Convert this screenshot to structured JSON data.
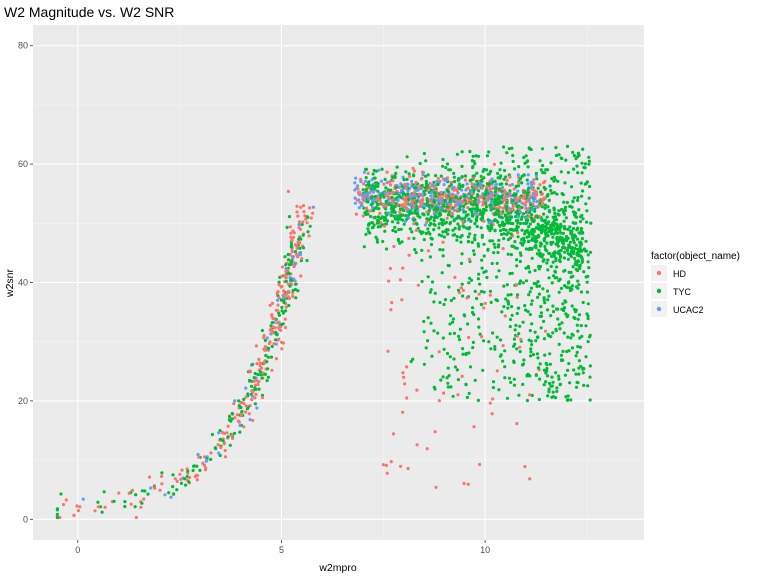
{
  "chart_data": {
    "type": "scatter",
    "title": "W2 Magnitude vs. W2 SNR",
    "xlabel": "w2mpro",
    "ylabel": "w2snr",
    "xlim": [
      -1.1,
      13.9
    ],
    "ylim": [
      -3.5,
      83.5
    ],
    "x_ticks": [
      0,
      5,
      10
    ],
    "y_ticks": [
      0,
      20,
      40,
      60,
      80
    ],
    "grid": true,
    "legend": {
      "title": "factor(object_name)",
      "placement": "right",
      "entries": [
        "HD",
        "TYC",
        "UCAC2"
      ]
    },
    "series": [
      {
        "name": "HD",
        "color": "#F8766D"
      },
      {
        "name": "TYC",
        "color": "#00BA38"
      },
      {
        "name": "UCAC2",
        "color": "#619CFF"
      }
    ]
  }
}
